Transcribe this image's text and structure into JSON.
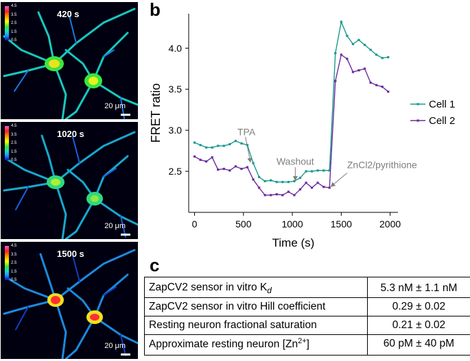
{
  "panels": {
    "a": "a",
    "b": "b",
    "c": "c"
  },
  "micrographs": [
    {
      "time": "420 s",
      "scale": "20 μm"
    },
    {
      "time": "1020 s",
      "scale": "20 μm"
    },
    {
      "time": "1500 s",
      "scale": "20 μm"
    }
  ],
  "colorbar_ticks": [
    "4.5",
    "3.5",
    "2.5",
    "1.5",
    "0.5"
  ],
  "colors": {
    "cell1": "#1a9a8c",
    "cell2": "#6a2ca0",
    "annotation": "#7f7f7f"
  },
  "chart_data": {
    "type": "line",
    "xlabel": "Time (s)",
    "ylabel": "FRET ratio",
    "xlim": [
      -60,
      2080
    ],
    "ylim": [
      2.0,
      4.42
    ],
    "xticks": [
      0,
      500,
      1000,
      1500,
      2000
    ],
    "yticks": [
      2.5,
      3.0,
      3.5,
      4.0
    ],
    "x": [
      0,
      60,
      120,
      180,
      240,
      300,
      360,
      420,
      480,
      540,
      600,
      660,
      720,
      780,
      840,
      900,
      960,
      1020,
      1080,
      1140,
      1200,
      1260,
      1320,
      1380,
      1440,
      1500,
      1560,
      1620,
      1680,
      1740,
      1800,
      1860,
      1920,
      1980
    ],
    "series": [
      {
        "name": "Cell 1",
        "values": [
          2.85,
          2.82,
          2.79,
          2.79,
          2.81,
          2.81,
          2.83,
          2.87,
          2.84,
          2.82,
          2.6,
          2.43,
          2.38,
          2.39,
          2.37,
          2.37,
          2.37,
          2.38,
          2.42,
          2.5,
          2.5,
          2.51,
          2.51,
          2.51,
          3.94,
          4.32,
          4.15,
          4.05,
          4.1,
          4.04,
          3.98,
          3.92,
          3.88,
          3.89
        ]
      },
      {
        "name": "Cell 2",
        "values": [
          2.68,
          2.64,
          2.62,
          2.67,
          2.52,
          2.53,
          2.51,
          2.56,
          2.53,
          2.55,
          2.4,
          2.3,
          2.21,
          2.21,
          2.22,
          2.21,
          2.25,
          2.21,
          2.28,
          2.36,
          2.3,
          2.36,
          2.31,
          2.3,
          3.6,
          3.92,
          3.87,
          3.71,
          3.73,
          3.75,
          3.58,
          3.55,
          3.53,
          3.47
        ]
      }
    ],
    "legend": [
      "Cell 1",
      "Cell 2"
    ],
    "annotations": [
      {
        "text": "TPA",
        "x": 570,
        "y": 2.62
      },
      {
        "text": "Washout",
        "x": 1030,
        "y": 2.4
      },
      {
        "text": "ZnCl2/pyrithione",
        "x": 1400,
        "y": 2.32
      }
    ]
  },
  "table": {
    "rows": [
      {
        "label": "ZapCV2 sensor in vitro K",
        "label_sub": "d",
        "value": "5.3 nM ± 1.1 nM"
      },
      {
        "label": "ZapCV2 sensor in vitro Hill coefficient",
        "value": "0.29 ± 0.02"
      },
      {
        "label": "Resting neuron fractional saturation",
        "value": "0.21 ± 0.02"
      },
      {
        "label": "Approximate resting neuron [Zn",
        "label_sup": "2+",
        "label_tail": "]",
        "value": "60 pM ± 40 pM"
      }
    ]
  }
}
